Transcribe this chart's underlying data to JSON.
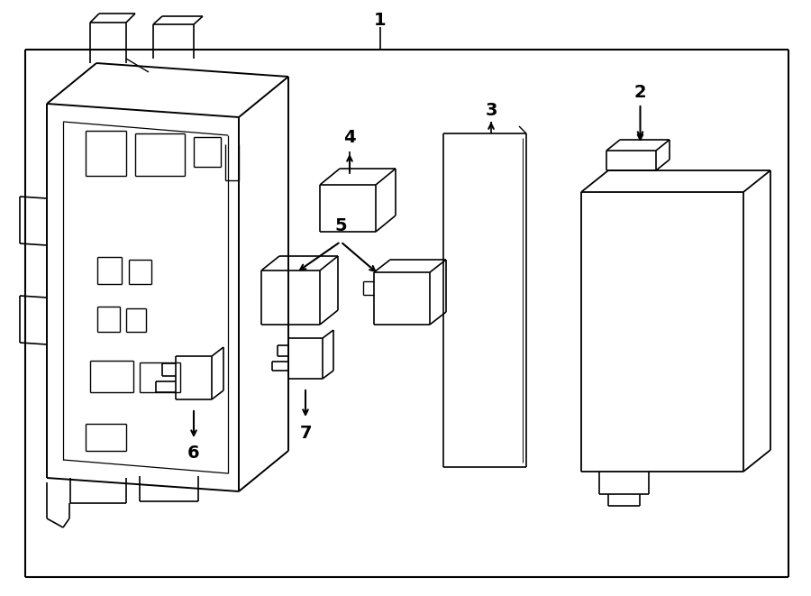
{
  "bg_color": "#ffffff",
  "line_color": "#000000",
  "line_width": 1.2,
  "fig_width": 9.0,
  "fig_height": 6.61,
  "dpi": 100
}
